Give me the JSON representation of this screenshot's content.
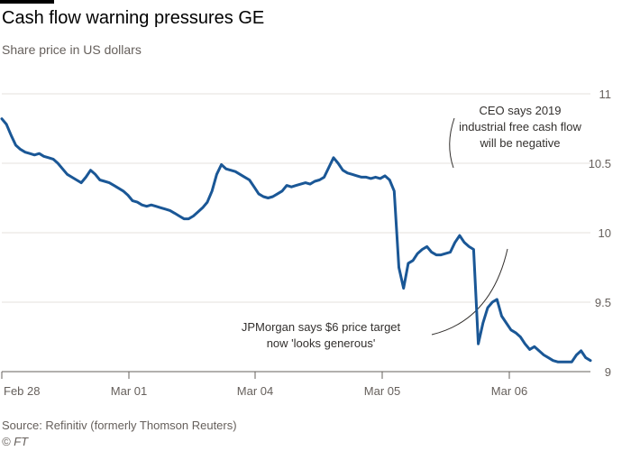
{
  "header": {
    "title": "Cash flow warning pressures GE",
    "subtitle": "Share price in US dollars"
  },
  "footer": {
    "source": "Source: Refinitiv (formerly Thomson Reuters)",
    "credit": "© FT"
  },
  "colors": {
    "line": "#1a5796",
    "grid": "#e6e2dd",
    "axis": "#66605c",
    "text": "#33302e",
    "annotation_line": "#33302e"
  },
  "chart_data": {
    "type": "line",
    "title": "Cash flow warning pressures GE",
    "subtitle": "Share price in US dollars",
    "xlabel": "",
    "ylabel": "",
    "x_ticks": [
      "Feb 28",
      "Mar 01",
      "Mar 04",
      "Mar 05",
      "Mar 06"
    ],
    "y_ticks": [
      9,
      9.5,
      10,
      10.5,
      11
    ],
    "ylim": [
      9,
      11
    ],
    "y_axis_side": "right",
    "grid": true,
    "series": [
      {
        "values": [
          10.82,
          10.78,
          10.7,
          10.63,
          10.6,
          10.58,
          10.57,
          10.56,
          10.57,
          10.55,
          10.54,
          10.53,
          10.5,
          10.46,
          10.42,
          10.4,
          10.38,
          10.36,
          10.4,
          10.45,
          10.42,
          10.38,
          10.37,
          10.36,
          10.34,
          10.32,
          10.3,
          10.27,
          10.23,
          10.22,
          10.2,
          10.19,
          10.2,
          10.19,
          10.18,
          10.17,
          10.16,
          10.14,
          10.12,
          10.1,
          10.1,
          10.12,
          10.15,
          10.18,
          10.22,
          10.3,
          10.42,
          10.49,
          10.46,
          10.45,
          10.44,
          10.42,
          10.4,
          10.38,
          10.33,
          10.28,
          10.26,
          10.25,
          10.26,
          10.28,
          10.3,
          10.34,
          10.33,
          10.34,
          10.35,
          10.36,
          10.35,
          10.37,
          10.38,
          10.4,
          10.47,
          10.54,
          10.5,
          10.45,
          10.43,
          10.42,
          10.41,
          10.4,
          10.4,
          10.39,
          10.4,
          10.39,
          10.41,
          10.38,
          10.3,
          9.75,
          9.6,
          9.78,
          9.8,
          9.85,
          9.88,
          9.9,
          9.86,
          9.84,
          9.84,
          9.85,
          9.86,
          9.93,
          9.98,
          9.93,
          9.9,
          9.88,
          9.2,
          9.35,
          9.46,
          9.5,
          9.52,
          9.4,
          9.35,
          9.3,
          9.28,
          9.25,
          9.2,
          9.16,
          9.18,
          9.15,
          9.12,
          9.1,
          9.08,
          9.07,
          9.07,
          9.07,
          9.07,
          9.12,
          9.15,
          9.1,
          9.08
        ]
      }
    ],
    "annotations": [
      {
        "text": [
          "CEO says 2019",
          "industrial free cash flow",
          "will be negative"
        ]
      },
      {
        "text": [
          "JPMorgan says $6 price target",
          "now 'looks generous'"
        ]
      }
    ]
  }
}
